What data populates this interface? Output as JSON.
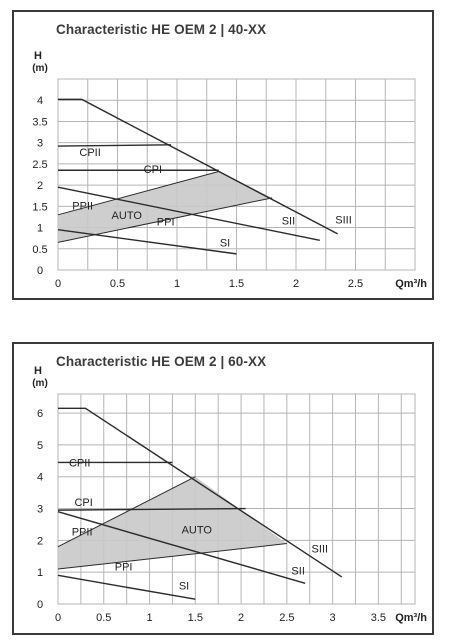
{
  "charts": [
    {
      "title": "Characteristic HE OEM 2 | 40-XX",
      "ylabel": "H",
      "yunit": "(m)",
      "xlabel": "Qm³/h",
      "xticks": [
        "0",
        "0.5",
        "1",
        "1.5",
        "2",
        "2.5"
      ],
      "yticks": [
        "0",
        "0.5",
        "1",
        "1.5",
        "2",
        "2.5",
        "3",
        "3.5",
        "4"
      ]
    },
    {
      "title": "Characteristic HE OEM 2 | 60-XX",
      "ylabel": "H",
      "yunit": "(m)",
      "xlabel": "Qm³/h",
      "xticks": [
        "0",
        "0.5",
        "1",
        "1.5",
        "2",
        "2.5",
        "3",
        "3.5"
      ],
      "yticks": [
        "0",
        "1",
        "2",
        "3",
        "4",
        "5",
        "6"
      ]
    }
  ],
  "chart_data": [
    {
      "type": "line",
      "title": "Characteristic HE OEM 2 | 40-XX",
      "xlabel": "Qm³/h",
      "ylabel": "H (m)",
      "xlim": [
        0,
        3.0
      ],
      "ylim": [
        0,
        4.5
      ],
      "grid": true,
      "colors": {
        "line": "#2b2b2b",
        "band": "#c9c9c9",
        "grid": "#b5b5b5"
      },
      "band": {
        "name": "AUTO",
        "points": [
          [
            0,
            0.65
          ],
          [
            1.8,
            1.7
          ],
          [
            1.35,
            2.32
          ],
          [
            0,
            1.3
          ]
        ]
      },
      "series": [
        {
          "name": "SIII",
          "points": [
            [
              0,
              4.02
            ],
            [
              0.2,
              4.02
            ],
            [
              2.35,
              0.85
            ]
          ]
        },
        {
          "name": "SII",
          "points": [
            [
              0,
              1.95
            ],
            [
              2.2,
              0.7
            ]
          ]
        },
        {
          "name": "SI",
          "points": [
            [
              0,
              0.95
            ],
            [
              1.5,
              0.38
            ]
          ]
        },
        {
          "name": "CPII",
          "points": [
            [
              0,
              2.92
            ],
            [
              0.95,
              2.95
            ]
          ]
        },
        {
          "name": "CPI",
          "points": [
            [
              0,
              2.35
            ],
            [
              1.35,
              2.35
            ]
          ]
        },
        {
          "name": "PPII",
          "points": [
            [
              0,
              1.3
            ],
            [
              1.35,
              2.32
            ]
          ]
        },
        {
          "name": "PPI",
          "points": [
            [
              0,
              0.65
            ],
            [
              1.8,
              1.7
            ]
          ]
        }
      ],
      "labels": [
        {
          "text": "CPII",
          "x": 0.18,
          "y": 2.68
        },
        {
          "text": "CPI",
          "x": 0.72,
          "y": 2.28
        },
        {
          "text": "PPII",
          "x": 0.12,
          "y": 1.43
        },
        {
          "text": "AUTO",
          "x": 0.45,
          "y": 1.2
        },
        {
          "text": "PPI",
          "x": 0.83,
          "y": 1.05
        },
        {
          "text": "SII",
          "x": 1.88,
          "y": 1.07
        },
        {
          "text": "SIII",
          "x": 2.33,
          "y": 1.1
        },
        {
          "text": "SI",
          "x": 1.36,
          "y": 0.55
        }
      ]
    },
    {
      "type": "line",
      "title": "Characteristic HE OEM 2 | 60-XX",
      "xlabel": "Qm³/h",
      "ylabel": "H (m)",
      "xlim": [
        0,
        3.9
      ],
      "ylim": [
        0,
        6.6
      ],
      "grid": true,
      "colors": {
        "line": "#2b2b2b",
        "band": "#c9c9c9",
        "grid": "#b5b5b5"
      },
      "band": {
        "name": "AUTO",
        "points": [
          [
            0,
            1.1
          ],
          [
            2.5,
            1.9
          ],
          [
            1.5,
            4.0
          ],
          [
            0,
            1.8
          ]
        ]
      },
      "series": [
        {
          "name": "SIII",
          "points": [
            [
              0,
              6.15
            ],
            [
              0.3,
              6.15
            ],
            [
              3.1,
              0.85
            ]
          ]
        },
        {
          "name": "SII",
          "points": [
            [
              0,
              2.9
            ],
            [
              2.7,
              0.65
            ]
          ]
        },
        {
          "name": "SI",
          "points": [
            [
              0,
              0.9
            ],
            [
              1.5,
              0.15
            ]
          ]
        },
        {
          "name": "CPII",
          "points": [
            [
              0,
              4.45
            ],
            [
              1.25,
              4.45
            ]
          ]
        },
        {
          "name": "CPI",
          "points": [
            [
              0,
              2.95
            ],
            [
              2.05,
              3.0
            ]
          ]
        },
        {
          "name": "PPII",
          "points": [
            [
              0,
              1.8
            ],
            [
              1.5,
              4.0
            ]
          ]
        },
        {
          "name": "PPI",
          "points": [
            [
              0,
              1.1
            ],
            [
              2.5,
              1.9
            ]
          ]
        }
      ],
      "labels": [
        {
          "text": "CPII",
          "x": 0.12,
          "y": 4.32
        },
        {
          "text": "CPI",
          "x": 0.18,
          "y": 3.08
        },
        {
          "text": "PPII",
          "x": 0.15,
          "y": 2.15
        },
        {
          "text": "AUTO",
          "x": 1.35,
          "y": 2.22
        },
        {
          "text": "PPI",
          "x": 0.62,
          "y": 1.05
        },
        {
          "text": "SIII",
          "x": 2.77,
          "y": 1.62
        },
        {
          "text": "SII",
          "x": 2.55,
          "y": 0.92
        },
        {
          "text": "SI",
          "x": 1.32,
          "y": 0.45
        }
      ]
    }
  ]
}
